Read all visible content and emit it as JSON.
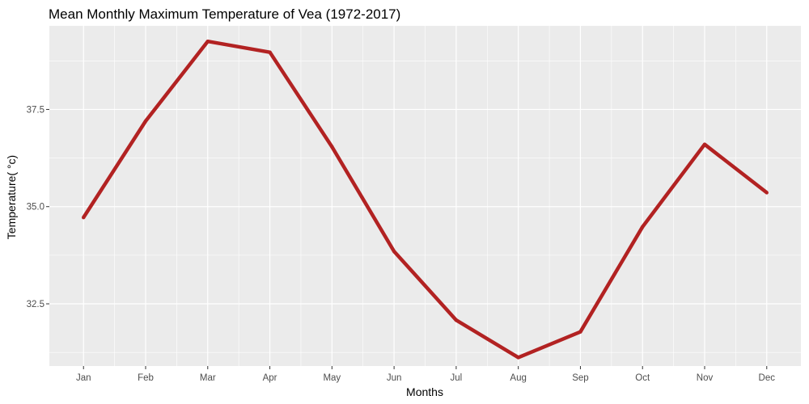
{
  "chart_data": {
    "type": "line",
    "title": "Mean Monthly Maximum Temperature  of Vea (1972-2017)",
    "xlabel": "Months",
    "ylabel": "Temperature( °c)",
    "categories": [
      "Jan",
      "Feb",
      "Mar",
      "Apr",
      "May",
      "Jun",
      "Jul",
      "Aug",
      "Sep",
      "Oct",
      "Nov",
      "Dec"
    ],
    "series": [
      {
        "values": [
          34.72,
          37.2,
          39.25,
          38.97,
          36.54,
          33.85,
          32.08,
          31.12,
          31.78,
          34.48,
          36.6,
          35.36
        ],
        "color": "#b22222"
      }
    ],
    "ylim": [
      30.9,
      39.65
    ],
    "y_ticks": [
      32.5,
      35.0,
      37.5
    ],
    "y_tick_labels": [
      "32.5",
      "35.0",
      "37.5"
    ],
    "grid": true,
    "panel_background": "#ebebeb",
    "grid_color": "#ffffff"
  }
}
